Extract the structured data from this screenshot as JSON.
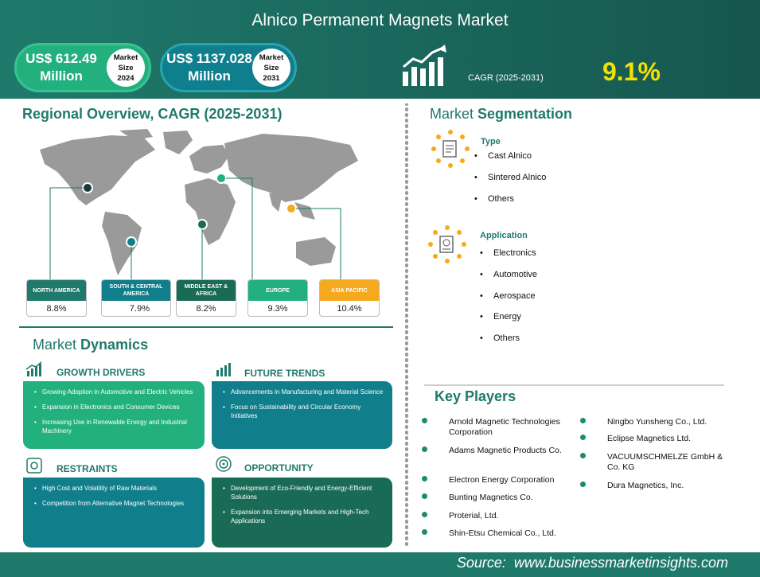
{
  "header": {
    "title": "Alnico Permanent Magnets Market",
    "market_2024": {
      "amount": "US$ 612.49",
      "unit": "Million",
      "badge": [
        "Market",
        "Size",
        "2024"
      ]
    },
    "market_2031": {
      "amount": "US$ 1137.028",
      "unit": "Million",
      "badge": [
        "Market",
        "Size",
        "2031"
      ]
    },
    "cagr_label": "CAGR (2025-2031)",
    "cagr_value": "9.1%"
  },
  "regional": {
    "title": "Regional Overview, CAGR (2025-2031)",
    "regions": [
      {
        "name": "NORTH AMERICA",
        "value": "8.8%",
        "color": "#1f7a6c"
      },
      {
        "name": "SOUTH & CENTRAL AMERICA",
        "value": "7.9%",
        "color": "#117e8c"
      },
      {
        "name": "MIDDLE EAST & AFRICA",
        "value": "8.2%",
        "color": "#1a6b55"
      },
      {
        "name": "EUROPE",
        "value": "9.3%",
        "color": "#22b07e"
      },
      {
        "name": "ASIA PACIFIC",
        "value": "10.4%",
        "color": "#f5a91f"
      }
    ]
  },
  "dynamics": {
    "title_a": "Market",
    "title_b": "Dynamics",
    "growth_drivers": {
      "title": "GROWTH DRIVERS",
      "items": [
        "Growing Adoption in Automotive and Electric Vehicles",
        "Expansion in Electronics and Consumer Devices",
        "Increasing Use in Renewable Energy and Industrial Machinery"
      ]
    },
    "future_trends": {
      "title": "FUTURE TRENDS",
      "items": [
        "Advancements in Manufacturing and Material Science",
        "Focus on Sustainability and Circular Economy Initiatives"
      ]
    },
    "restraints": {
      "title": "RESTRAINTS",
      "items": [
        "High Cost and Volatility of Raw Materials",
        "Competition from Alternative Magnet Technologies"
      ]
    },
    "opportunity": {
      "title": "OPPORTUNITY",
      "items": [
        "Development of Eco-Friendly and Energy-Efficient Solutions",
        "Expansion into Emerging Markets and High-Tech Applications"
      ]
    }
  },
  "segmentation": {
    "title_a": "Market",
    "title_b": "Segmentation",
    "type": {
      "title": "Type",
      "items": [
        "Cast Alnico",
        "Sintered Alnico",
        "Others"
      ]
    },
    "application": {
      "title": "Application",
      "items": [
        "Electronics",
        "Automotive",
        "Aerospace",
        "Energy",
        "Others"
      ]
    }
  },
  "key_players": {
    "title": "Key Players",
    "col1": [
      "Arnold Magnetic Technologies Corporation",
      "Adams Magnetic Products Co.",
      "Electron Energy Corporation",
      "Bunting Magnetics Co.",
      "Proterial, Ltd.",
      "Shin-Etsu Chemical Co., Ltd."
    ],
    "col2": [
      "Ningbo Yunsheng Co., Ltd.",
      "Eclipse Magnetics Ltd.",
      "VACUUMSCHMELZE GmbH & Co. KG",
      "Dura Magnetics, Inc."
    ]
  },
  "footer": {
    "source": "Source:  www.businessmarketinsights.com"
  },
  "colors": {
    "primary": "#1f7a6c",
    "green": "#22b07e",
    "teal": "#117e8c",
    "accent": "#f2e200",
    "orange": "#f5a91f"
  }
}
